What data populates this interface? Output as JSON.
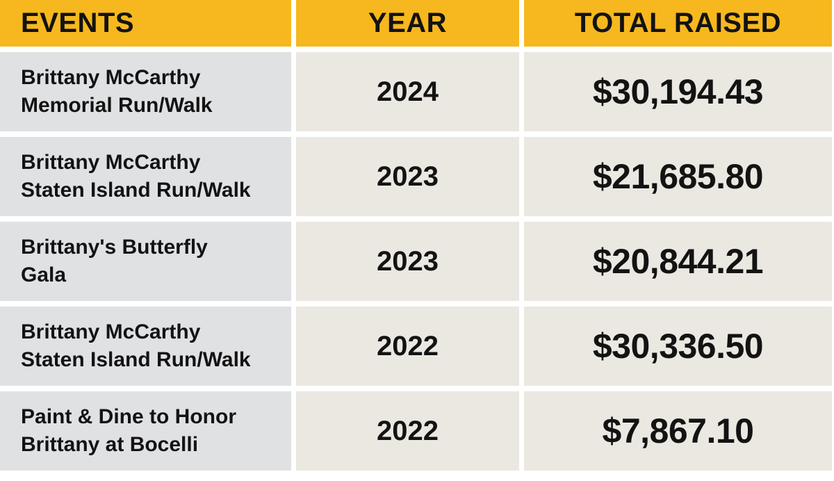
{
  "table": {
    "headers": [
      "EVENTS",
      "YEAR",
      "TOTAL RAISED"
    ],
    "rows": [
      {
        "event_lines": [
          "Brittany McCarthy",
          "Memorial Run/Walk"
        ],
        "year": "2024",
        "total": "$30,194.43"
      },
      {
        "event_lines": [
          "Brittany McCarthy",
          "Staten Island Run/Walk"
        ],
        "year": "2023",
        "total": "$21,685.80"
      },
      {
        "event_lines": [
          "Brittany's Butterfly",
          "Gala"
        ],
        "year": "2023",
        "total": "$20,844.21"
      },
      {
        "event_lines": [
          "Brittany McCarthy",
          "Staten Island Run/Walk"
        ],
        "year": "2022",
        "total": "$30,336.50"
      },
      {
        "event_lines": [
          "Paint & Dine to Honor",
          "Brittany at Bocelli"
        ],
        "year": "2022",
        "total": "$7,867.10"
      }
    ]
  },
  "colors": {
    "header_bg": "#F6B81E",
    "event_cell_bg": "#E0E1E3",
    "value_cell_bg": "#EBE8E1",
    "text": "#131313",
    "gap": "#FFFFFF"
  },
  "chart_data": {
    "type": "table",
    "title": "",
    "columns": [
      "EVENTS",
      "YEAR",
      "TOTAL RAISED"
    ],
    "rows": [
      [
        "Brittany McCarthy Memorial Run/Walk",
        "2024",
        "$30,194.43"
      ],
      [
        "Brittany McCarthy Staten Island Run/Walk",
        "2023",
        "$21,685.80"
      ],
      [
        "Brittany's Butterfly Gala",
        "2023",
        "$20,844.21"
      ],
      [
        "Brittany McCarthy Staten Island Run/Walk",
        "2022",
        "$30,336.50"
      ],
      [
        "Paint & Dine to Honor Brittany at Bocelli",
        "2022",
        "$7,867.10"
      ]
    ],
    "totals_numeric": [
      30194.43,
      21685.8,
      20844.21,
      30336.5,
      7867.1
    ],
    "years": [
      2024,
      2023,
      2023,
      2022,
      2022
    ]
  }
}
